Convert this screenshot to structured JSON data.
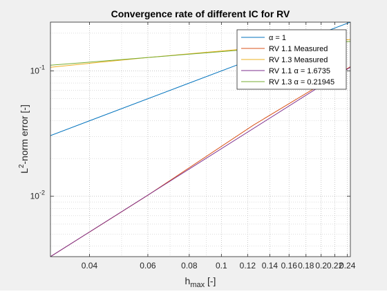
{
  "chart_data": {
    "type": "line",
    "title": "Convergence rate of different IC for RV",
    "xlabel": "h",
    "xlabel_sub": "max",
    "xlabel_unit": " [-]",
    "ylabel": "L",
    "ylabel_sup": "2",
    "ylabel_rest": "-norm error [-]",
    "xscale": "log",
    "yscale": "log",
    "xlim": [
      0.0305,
      0.245
    ],
    "ylim": [
      0.0033,
      0.245
    ],
    "grid": true,
    "legend_position": "top-right",
    "x_ticks": [
      {
        "value": 0.04,
        "label": "0.04"
      },
      {
        "value": 0.06,
        "label": "0.06"
      },
      {
        "value": 0.08,
        "label": "0.08"
      },
      {
        "value": 0.1,
        "label": "0.1"
      },
      {
        "value": 0.12,
        "label": "0.12"
      },
      {
        "value": 0.14,
        "label": "0.14"
      },
      {
        "value": 0.16,
        "label": "0.16"
      },
      {
        "value": 0.18,
        "label": "0.18"
      },
      {
        "value": 0.2,
        "label": "0.2"
      },
      {
        "value": 0.22,
        "label": "0.22"
      },
      {
        "value": 0.24,
        "label": "0.24"
      }
    ],
    "y_ticks": [
      {
        "value": 0.01,
        "base": "10",
        "exp": "-2"
      },
      {
        "value": 0.1,
        "base": "10",
        "exp": "-1"
      }
    ],
    "series": [
      {
        "name": "α = 1",
        "color": "#0072bd",
        "x": [
          0.0305,
          0.245
        ],
        "y": [
          0.0305,
          0.245
        ]
      },
      {
        "name": "RV 1.1 Measured",
        "color": "#d95319",
        "x": [
          0.0305,
          0.06,
          0.125,
          0.245
        ],
        "y": [
          0.0033,
          0.0102,
          0.037,
          0.108
        ]
      },
      {
        "name": "RV 1.3 Measured",
        "color": "#edb120",
        "x": [
          0.0305,
          0.06,
          0.125,
          0.245
        ],
        "y": [
          0.107,
          0.128,
          0.152,
          0.178
        ]
      },
      {
        "name": "RV 1.1 α = 1.6735",
        "color": "#7e2f8e",
        "x": [
          0.0305,
          0.245
        ],
        "y": [
          0.0033,
          0.107
        ]
      },
      {
        "name": "RV 1.3 α = 0.21945",
        "color": "#77ac30",
        "x": [
          0.0305,
          0.245
        ],
        "y": [
          0.111,
          0.172
        ]
      }
    ]
  }
}
